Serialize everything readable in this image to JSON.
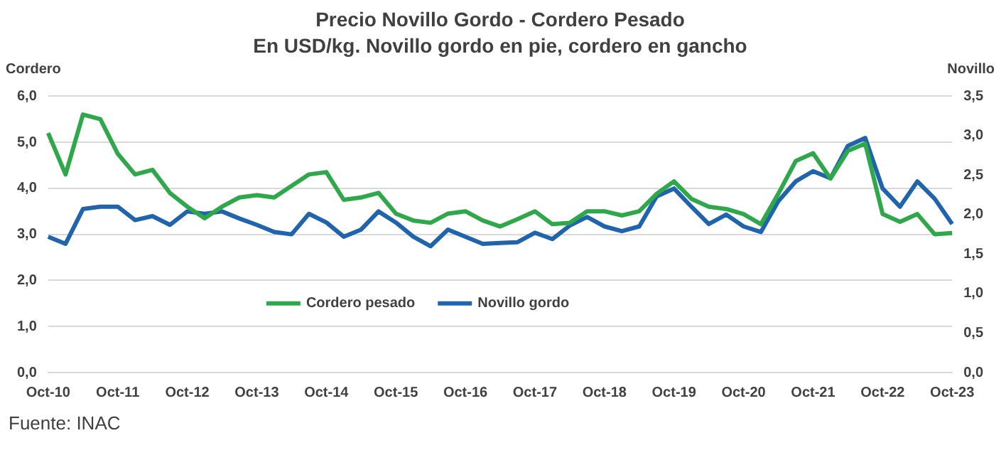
{
  "chart_data": {
    "type": "line",
    "title": "Precio Novillo Gordo - Cordero Pesado",
    "subtitle": "En USD/kg. Novillo gordo en pie, cordero en gancho",
    "ylabel": "Cordero",
    "y2label": "Novillo",
    "categories": [
      "Oct-10",
      null,
      null,
      null,
      "Oct-11",
      null,
      null,
      null,
      "Oct-12",
      null,
      null,
      null,
      "Oct-13",
      null,
      null,
      null,
      "Oct-14",
      null,
      null,
      null,
      "Oct-15",
      null,
      null,
      null,
      "Oct-16",
      null,
      null,
      null,
      "Oct-17",
      null,
      null,
      null,
      "Oct-18",
      null,
      null,
      null,
      "Oct-19",
      null,
      null,
      null,
      "Oct-20",
      null,
      null,
      null,
      "Oct-21",
      null,
      null,
      null,
      "Oct-22",
      null,
      null,
      null,
      "Oct-23"
    ],
    "series": [
      {
        "name": "Cordero pesado",
        "color": "#2ea84a",
        "values": [
          5.2,
          4.3,
          5.6,
          5.5,
          4.75,
          4.3,
          4.4,
          3.9,
          3.6,
          3.35,
          3.6,
          3.8,
          3.85,
          3.8,
          4.05,
          4.3,
          4.35,
          3.75,
          3.8,
          3.9,
          3.45,
          3.3,
          3.25,
          3.45,
          3.5,
          3.3,
          3.17,
          3.33,
          3.5,
          3.22,
          3.25,
          3.5,
          3.5,
          3.41,
          3.5,
          3.88,
          4.15,
          3.77,
          3.6,
          3.55,
          3.44,
          3.22,
          3.88,
          4.59,
          4.76,
          4.21,
          4.81,
          4.97,
          3.44,
          3.27,
          3.44,
          3.0,
          3.03
        ]
      },
      {
        "name": "Novillo gordo",
        "color": "#1f64ad",
        "axis": "y2",
        "values": [
          1.72,
          1.63,
          2.07,
          2.1,
          2.1,
          1.93,
          1.98,
          1.87,
          2.04,
          2.01,
          2.04,
          1.95,
          1.87,
          1.78,
          1.75,
          2.01,
          1.9,
          1.72,
          1.81,
          2.04,
          1.9,
          1.72,
          1.6,
          1.81,
          1.72,
          1.63,
          1.64,
          1.65,
          1.77,
          1.69,
          1.86,
          1.97,
          1.85,
          1.79,
          1.85,
          2.23,
          2.33,
          2.1,
          1.88,
          2.0,
          1.85,
          1.78,
          2.17,
          2.42,
          2.55,
          2.46,
          2.87,
          2.97,
          2.33,
          2.1,
          2.42,
          2.2,
          1.88
        ]
      }
    ],
    "ylim": [
      0,
      6
    ],
    "yticks": [
      {
        "value": 0,
        "label": "0,0"
      },
      {
        "value": 1,
        "label": "1,0"
      },
      {
        "value": 2,
        "label": "2,0"
      },
      {
        "value": 3,
        "label": "3,0"
      },
      {
        "value": 4,
        "label": "4,0"
      },
      {
        "value": 5,
        "label": "5,0"
      },
      {
        "value": 6,
        "label": "6,0"
      }
    ],
    "y2lim": [
      0,
      3.5
    ],
    "y2ticks": [
      {
        "value": 0,
        "label": "0,0"
      },
      {
        "value": 0.5,
        "label": "0,5"
      },
      {
        "value": 1,
        "label": "1,0"
      },
      {
        "value": 1.5,
        "label": "1,5"
      },
      {
        "value": 2,
        "label": "2,0"
      },
      {
        "value": 2.5,
        "label": "2,5"
      },
      {
        "value": 3,
        "label": "3,0"
      },
      {
        "value": 3.5,
        "label": "3,5"
      }
    ],
    "grid": "y",
    "legend": "bottom",
    "marker": "none",
    "line_style": "solid",
    "annotations": [
      "Fuente: INAC"
    ]
  }
}
